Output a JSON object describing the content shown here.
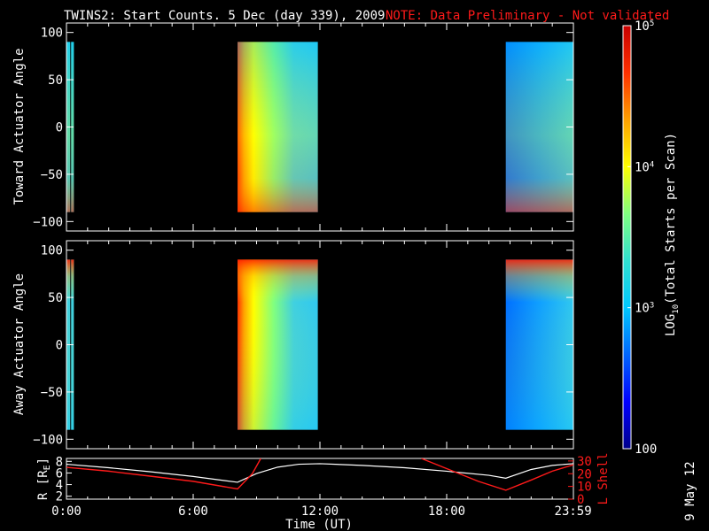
{
  "header": {
    "title": "TWINS2: Start Counts.  5 Dec (day 339), 2009",
    "note": "NOTE: Data Preliminary - Not validated"
  },
  "footer": {
    "date_stamp": "9 May 12"
  },
  "chart_data": [
    {
      "type": "heatmap",
      "ylabel": "Toward Actuator Angle",
      "ylim": [
        -110,
        110
      ],
      "yticks": [
        "100",
        "50",
        "0",
        "−50",
        "−100"
      ],
      "ytick_values": [
        100,
        50,
        0,
        -50,
        -100
      ],
      "x_range_hours": [
        0,
        24
      ],
      "data_blocks_hours": [
        [
          0.0,
          0.18
        ],
        [
          0.22,
          0.35
        ],
        [
          8.1,
          11.9
        ],
        [
          20.8,
          23.99
        ]
      ],
      "angle_range": [
        -90,
        90
      ],
      "trend": "high counts (red/orange) near +90 early in each pass, decreasing (cyan/blue) toward the end; red band near -90 at the bottom"
    },
    {
      "type": "heatmap",
      "ylabel": "Away Actuator Angle",
      "ylim": [
        -110,
        110
      ],
      "yticks": [
        "100",
        "50",
        "0",
        "−50",
        "−100"
      ],
      "ytick_values": [
        100,
        50,
        0,
        -50,
        -100
      ],
      "x_range_hours": [
        0,
        24
      ],
      "data_blocks_hours": [
        [
          0.0,
          0.18
        ],
        [
          0.22,
          0.35
        ],
        [
          8.1,
          11.9
        ],
        [
          20.8,
          23.99
        ]
      ],
      "angle_range": [
        -90,
        90
      ],
      "trend": "red band near +90 at the top of each pass, orange at pass start fading to cyan/blue"
    },
    {
      "type": "line",
      "ylabel_left": "R [R",
      "ylabel_left_sub": "E",
      "ylabel_left_end": "]",
      "ylabel_right": "L Shell",
      "yticks_left": [
        "8",
        "6",
        "4",
        "2"
      ],
      "ytick_values_left": [
        8,
        6,
        4,
        2
      ],
      "ylim_left": [
        1.5,
        8.5
      ],
      "yticks_right": [
        "30",
        "20",
        "10",
        "0"
      ],
      "ytick_values_right": [
        30,
        20,
        10,
        0
      ],
      "ylim_right": [
        0,
        32
      ],
      "series": [
        {
          "color": "#ffffff",
          "axis": "left",
          "x": [
            0,
            2,
            4,
            6,
            8.1,
            9,
            10,
            11,
            12,
            14,
            16,
            18,
            20,
            20.8,
            22,
            23,
            24
          ],
          "y": [
            7.5,
            6.9,
            6.2,
            5.4,
            4.4,
            5.9,
            7.0,
            7.5,
            7.6,
            7.3,
            6.9,
            6.3,
            5.6,
            5.1,
            6.6,
            7.3,
            7.6
          ]
        },
        {
          "color": "#ff1a1a",
          "axis": "right",
          "segments": [
            {
              "x": [
                0,
                2,
                4,
                6,
                8.1,
                8.8,
                9.2
              ],
              "y": [
                25,
                22,
                18,
                14,
                8,
                20,
                32
              ]
            },
            {
              "x": [
                16.8,
                18,
                19.5,
                20.8,
                22,
                23,
                24
              ],
              "y": [
                32,
                24,
                14,
                7,
                15,
                22,
                27
              ]
            }
          ]
        }
      ]
    },
    {
      "type": "colorbar",
      "label_main": "LOG",
      "label_sub": "10",
      "label_rest": "(Total Starts per Scan)",
      "scale": "log",
      "range": [
        100,
        100000
      ],
      "tick_labels": [
        "100",
        "10",
        "10",
        "10"
      ],
      "tick_exponents": [
        "",
        "3",
        "4",
        "5"
      ],
      "tick_values": [
        100,
        1000,
        10000,
        100000
      ],
      "colors": [
        "#00008b",
        "#0000ff",
        "#0066ff",
        "#00c8ff",
        "#30e0d0",
        "#80ff80",
        "#ffff00",
        "#ffa000",
        "#ff3000",
        "#c80000"
      ]
    }
  ],
  "time_axis": {
    "label": "Time (UT)",
    "ticks": [
      "0:00",
      "6:00",
      "12:00",
      "18:00",
      "23:59"
    ],
    "tick_values": [
      0,
      6,
      12,
      18,
      23.983
    ]
  }
}
